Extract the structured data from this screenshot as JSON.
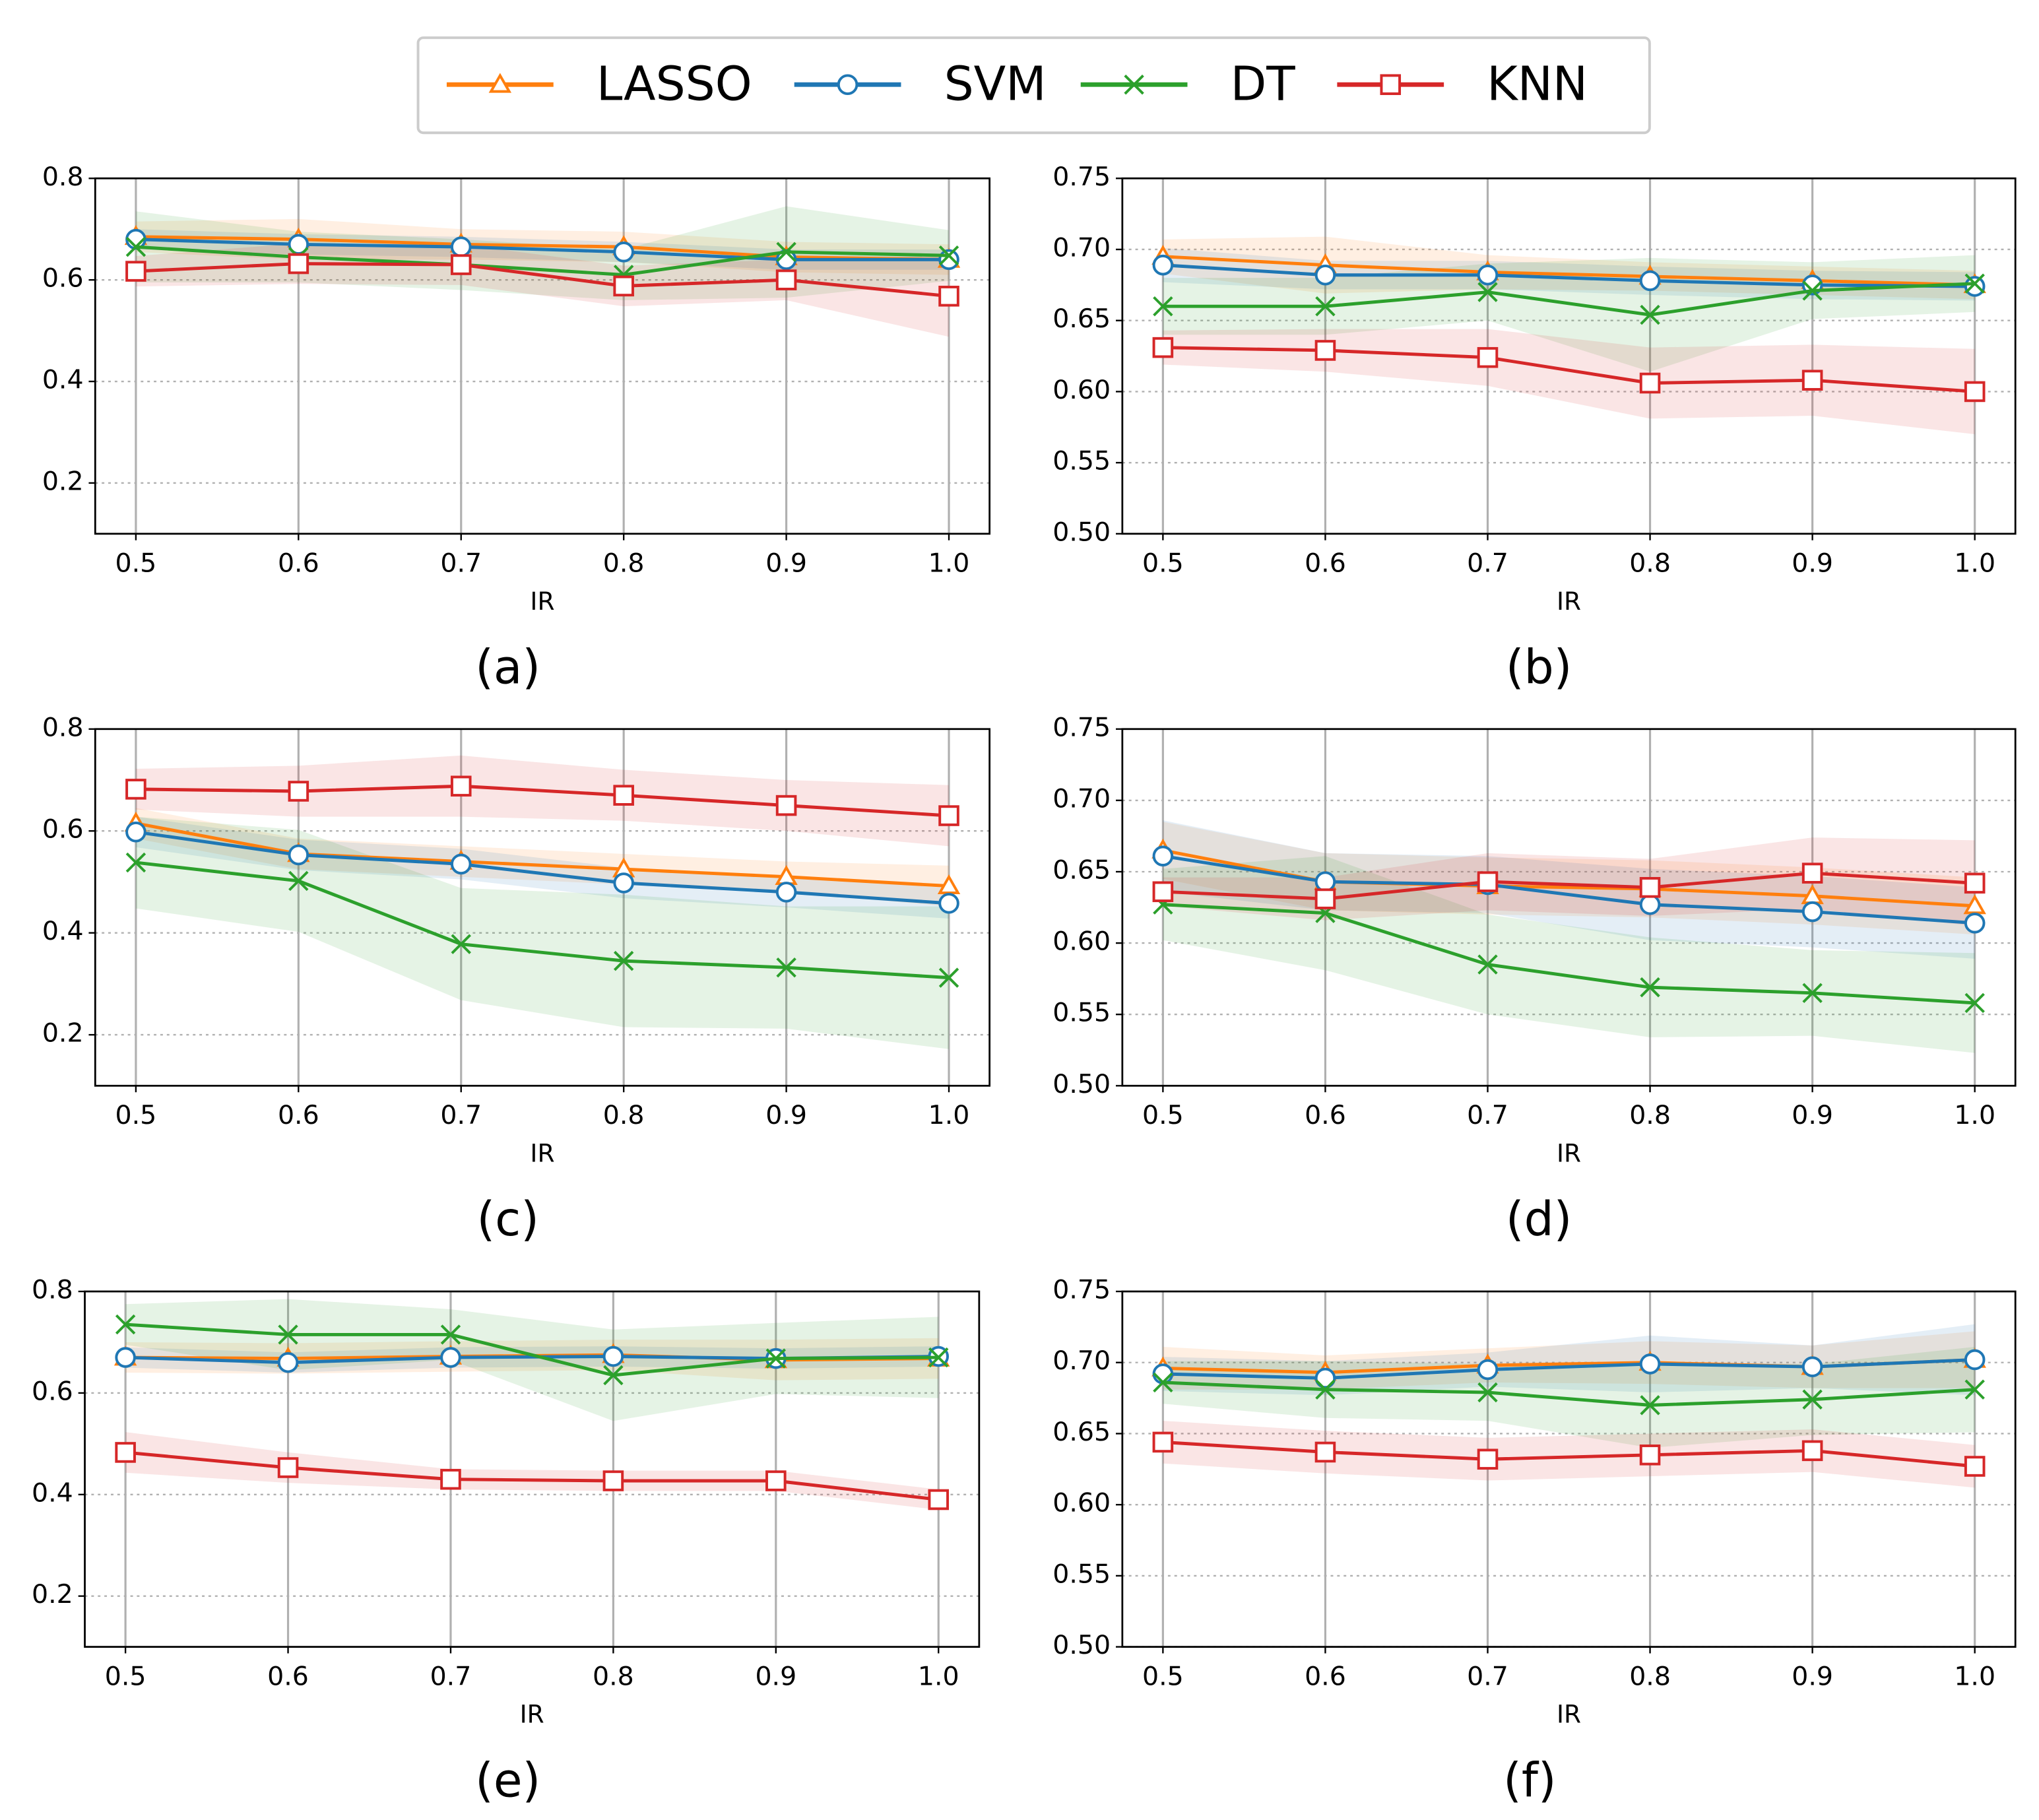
{
  "legend": {
    "position": "top",
    "series": [
      {
        "name": "LASSO",
        "color": "#ff7f0e",
        "marker": "triangle"
      },
      {
        "name": "SVM",
        "color": "#1f77b4",
        "marker": "circle"
      },
      {
        "name": "DT",
        "color": "#2ca02c",
        "marker": "x"
      },
      {
        "name": "KNN",
        "color": "#d62728",
        "marker": "square"
      }
    ]
  },
  "chart_data": [
    {
      "type": "line",
      "caption": "(a)",
      "xlabel": "IR",
      "grid": true,
      "x": [
        0.5,
        0.6,
        0.7,
        0.8,
        0.9,
        1.0
      ],
      "xlim": [
        0.475,
        1.025
      ],
      "xticks": [
        0.5,
        0.6,
        0.7,
        0.8,
        0.9,
        {
          "value": 1.0,
          "label": "1.0"
        }
      ],
      "ylim": [
        0.1,
        0.8
      ],
      "yticks": [
        0.2,
        0.4,
        0.6,
        0.8
      ],
      "series": [
        {
          "values": [
            0.685,
            0.68,
            0.67,
            0.665,
            0.645,
            0.64
          ],
          "errors": [
            0.03,
            0.04,
            0.03,
            0.03,
            0.03,
            0.03
          ]
        },
        {
          "values": [
            0.68,
            0.67,
            0.665,
            0.655,
            0.64,
            0.64
          ],
          "errors": [
            0.02,
            0.02,
            0.02,
            0.02,
            0.02,
            0.02
          ]
        },
        {
          "values": [
            0.665,
            0.645,
            0.63,
            0.61,
            0.655,
            0.648
          ],
          "errors": [
            0.07,
            0.05,
            0.05,
            0.05,
            0.09,
            0.05
          ]
        },
        {
          "values": [
            0.617,
            0.632,
            0.63,
            0.588,
            0.6,
            0.568
          ],
          "errors": [
            0.03,
            0.04,
            0.04,
            0.04,
            0.04,
            0.08
          ]
        }
      ]
    },
    {
      "type": "line",
      "caption": "(b)",
      "xlabel": "IR",
      "grid": true,
      "x": [
        0.5,
        0.6,
        0.7,
        0.8,
        0.9,
        1.0
      ],
      "xlim": [
        0.475,
        1.025
      ],
      "xticks": [
        0.5,
        0.6,
        0.7,
        0.8,
        0.9,
        {
          "value": 1.0,
          "label": "1.0"
        }
      ],
      "ylim": [
        0.5,
        0.75
      ],
      "yticks": [
        {
          "value": 0.5,
          "label": "0.50"
        },
        0.55,
        {
          "value": 0.6,
          "label": "0.60"
        },
        0.65,
        {
          "value": 0.7,
          "label": "0.70"
        },
        0.75
      ],
      "series": [
        {
          "values": [
            0.695,
            0.689,
            0.684,
            0.681,
            0.678,
            0.675
          ],
          "errors": [
            0.012,
            0.02,
            0.012,
            0.01,
            0.01,
            0.01
          ]
        },
        {
          "values": [
            0.689,
            0.682,
            0.682,
            0.678,
            0.675,
            0.674
          ],
          "errors": [
            0.012,
            0.01,
            0.01,
            0.01,
            0.01,
            0.01
          ]
        },
        {
          "values": [
            0.66,
            0.66,
            0.67,
            0.654,
            0.671,
            0.676
          ],
          "errors": [
            0.02,
            0.02,
            0.02,
            0.04,
            0.02,
            0.02
          ]
        },
        {
          "values": [
            0.631,
            0.629,
            0.624,
            0.606,
            0.608,
            0.6
          ],
          "errors": [
            0.012,
            0.015,
            0.02,
            0.025,
            0.025,
            0.03
          ]
        }
      ]
    },
    {
      "type": "line",
      "caption": "(c)",
      "xlabel": "IR",
      "grid": true,
      "x": [
        0.5,
        0.6,
        0.7,
        0.8,
        0.9,
        1.0
      ],
      "xlim": [
        0.475,
        1.025
      ],
      "xticks": [
        0.5,
        0.6,
        0.7,
        0.8,
        0.9,
        {
          "value": 1.0,
          "label": "1.0"
        }
      ],
      "ylim": [
        0.1,
        0.8
      ],
      "yticks": [
        0.2,
        0.4,
        0.6,
        0.8
      ],
      "series": [
        {
          "values": [
            0.615,
            0.555,
            0.54,
            0.525,
            0.51,
            0.492
          ],
          "errors": [
            0.03,
            0.03,
            0.03,
            0.03,
            0.03,
            0.04
          ]
        },
        {
          "values": [
            0.598,
            0.553,
            0.535,
            0.498,
            0.48,
            0.458
          ],
          "errors": [
            0.03,
            0.03,
            0.03,
            0.03,
            0.03,
            0.03
          ]
        },
        {
          "values": [
            0.538,
            0.502,
            0.378,
            0.345,
            0.332,
            0.312
          ],
          "errors": [
            0.09,
            0.1,
            0.11,
            0.13,
            0.12,
            0.14
          ]
        },
        {
          "values": [
            0.682,
            0.678,
            0.688,
            0.67,
            0.65,
            0.63
          ],
          "errors": [
            0.04,
            0.05,
            0.06,
            0.05,
            0.05,
            0.06
          ]
        }
      ]
    },
    {
      "type": "line",
      "caption": "(d)",
      "xlabel": "IR",
      "grid": true,
      "x": [
        0.5,
        0.6,
        0.7,
        0.8,
        0.9,
        1.0
      ],
      "xlim": [
        0.475,
        1.025
      ],
      "xticks": [
        0.5,
        0.6,
        0.7,
        0.8,
        0.9,
        {
          "value": 1.0,
          "label": "1.0"
        }
      ],
      "ylim": [
        0.5,
        0.75
      ],
      "yticks": [
        {
          "value": 0.5,
          "label": "0.50"
        },
        0.55,
        {
          "value": 0.6,
          "label": "0.60"
        },
        0.65,
        {
          "value": 0.7,
          "label": "0.70"
        },
        0.75
      ],
      "series": [
        {
          "values": [
            0.665,
            0.643,
            0.64,
            0.638,
            0.633,
            0.626
          ],
          "errors": [
            0.02,
            0.02,
            0.02,
            0.02,
            0.02,
            0.02
          ]
        },
        {
          "values": [
            0.661,
            0.643,
            0.641,
            0.627,
            0.622,
            0.614
          ],
          "errors": [
            0.025,
            0.02,
            0.02,
            0.025,
            0.025,
            0.025
          ]
        },
        {
          "values": [
            0.627,
            0.621,
            0.585,
            0.569,
            0.565,
            0.558
          ],
          "errors": [
            0.025,
            0.04,
            0.035,
            0.035,
            0.03,
            0.035
          ]
        },
        {
          "values": [
            0.636,
            0.631,
            0.643,
            0.639,
            0.649,
            0.642
          ],
          "errors": [
            0.01,
            0.015,
            0.02,
            0.02,
            0.025,
            0.03
          ]
        }
      ]
    },
    {
      "type": "line",
      "caption": "(e)",
      "xlabel": "IR",
      "grid": true,
      "x": [
        0.5,
        0.6,
        0.7,
        0.8,
        0.9,
        1.0
      ],
      "xlim": [
        0.475,
        1.025
      ],
      "xticks": [
        0.5,
        0.6,
        0.7,
        0.8,
        0.9,
        {
          "value": 1.0,
          "label": "1.0"
        }
      ],
      "ylim": [
        0.1,
        0.8
      ],
      "yticks": [
        0.2,
        0.4,
        0.6,
        0.8
      ],
      "series": [
        {
          "values": [
            0.67,
            0.668,
            0.672,
            0.675,
            0.665,
            0.668
          ],
          "errors": [
            0.03,
            0.03,
            0.03,
            0.03,
            0.04,
            0.04
          ]
        },
        {
          "values": [
            0.67,
            0.66,
            0.67,
            0.672,
            0.668,
            0.672
          ],
          "errors": [
            0.02,
            0.02,
            0.02,
            0.02,
            0.02,
            0.02
          ]
        },
        {
          "values": [
            0.735,
            0.715,
            0.715,
            0.635,
            0.668,
            0.67
          ],
          "errors": [
            0.04,
            0.07,
            0.05,
            0.09,
            0.07,
            0.08
          ]
        },
        {
          "values": [
            0.483,
            0.453,
            0.43,
            0.427,
            0.427,
            0.39
          ],
          "errors": [
            0.04,
            0.03,
            0.02,
            0.02,
            0.02,
            0.02
          ]
        }
      ]
    },
    {
      "type": "line",
      "caption": "(f)",
      "xlabel": "IR",
      "grid": true,
      "x": [
        0.5,
        0.6,
        0.7,
        0.8,
        0.9,
        1.0
      ],
      "xlim": [
        0.475,
        1.025
      ],
      "xticks": [
        0.5,
        0.6,
        0.7,
        0.8,
        0.9,
        {
          "value": 1.0,
          "label": "1.0"
        }
      ],
      "ylim": [
        0.5,
        0.75
      ],
      "yticks": [
        {
          "value": 0.5,
          "label": "0.50"
        },
        0.55,
        {
          "value": 0.6,
          "label": "0.60"
        },
        0.65,
        {
          "value": 0.7,
          "label": "0.70"
        },
        0.75
      ],
      "series": [
        {
          "values": [
            0.696,
            0.693,
            0.698,
            0.7,
            0.697,
            0.702
          ],
          "errors": [
            0.015,
            0.012,
            0.012,
            0.015,
            0.015,
            0.02
          ]
        },
        {
          "values": [
            0.692,
            0.689,
            0.695,
            0.699,
            0.697,
            0.702
          ],
          "errors": [
            0.012,
            0.012,
            0.012,
            0.02,
            0.015,
            0.025
          ]
        },
        {
          "values": [
            0.686,
            0.681,
            0.679,
            0.67,
            0.674,
            0.681
          ],
          "errors": [
            0.015,
            0.02,
            0.02,
            0.03,
            0.025,
            0.03
          ]
        },
        {
          "values": [
            0.644,
            0.637,
            0.632,
            0.635,
            0.638,
            0.627
          ],
          "errors": [
            0.015,
            0.015,
            0.015,
            0.015,
            0.015,
            0.015
          ]
        }
      ]
    }
  ]
}
